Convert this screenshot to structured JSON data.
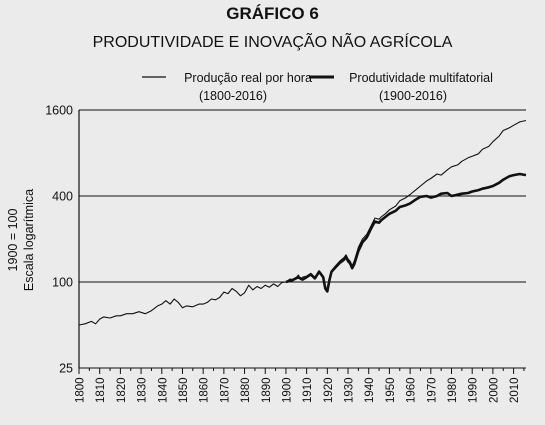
{
  "header": {
    "title": "GRÁFICO 6",
    "subtitle": "PRODUTIVIDADE E INOVAÇÃO NÃO AGRÍCOLA"
  },
  "chart_data": {
    "type": "line",
    "title": "GRÁFICO 6",
    "subtitle": "PRODUTIVIDADE E INOVAÇÃO NÃO AGRÍCOLA",
    "ylabel_lines": [
      "1900 = 100",
      "Escala logarítmica"
    ],
    "yscale": "log",
    "ylim": [
      25,
      1600
    ],
    "yticks": [
      25,
      100,
      400,
      1600
    ],
    "ytick_labels": [
      "25",
      "100",
      "400",
      "1600"
    ],
    "xlim": [
      1800,
      2016
    ],
    "xticks": [
      1800,
      1810,
      1820,
      1830,
      1840,
      1850,
      1860,
      1870,
      1880,
      1890,
      1900,
      1910,
      1920,
      1930,
      1940,
      1950,
      1960,
      1970,
      1980,
      1990,
      2000,
      2010
    ],
    "xtick_labels": [
      "1800",
      "1810",
      "1820",
      "1830",
      "1840",
      "1850",
      "1860",
      "1870",
      "1880",
      "1890",
      "1900",
      "1910",
      "1920",
      "1930",
      "1940",
      "1950",
      "1960",
      "1970",
      "1980",
      "1990",
      "2000",
      "2010"
    ],
    "grid": "horizontal",
    "legend_position": "top",
    "series": [
      {
        "name_lines": [
          "Produção real por hora",
          "(1800-2016)"
        ],
        "color": "#111111",
        "style": "thin",
        "x": [
          1800,
          1803,
          1806,
          1808,
          1810,
          1812,
          1815,
          1818,
          1820,
          1823,
          1826,
          1829,
          1832,
          1835,
          1838,
          1840,
          1842,
          1844,
          1846,
          1848,
          1850,
          1852,
          1855,
          1858,
          1860,
          1862,
          1864,
          1866,
          1868,
          1870,
          1872,
          1874,
          1876,
          1878,
          1880,
          1882,
          1884,
          1886,
          1888,
          1890,
          1892,
          1894,
          1896,
          1898,
          1900,
          1902,
          1904,
          1906,
          1907,
          1908,
          1910,
          1912,
          1914,
          1916,
          1918,
          1919,
          1920,
          1921,
          1922,
          1924,
          1926,
          1928,
          1929,
          1930,
          1931,
          1932,
          1933,
          1935,
          1937,
          1939,
          1941,
          1943,
          1945,
          1946,
          1948,
          1950,
          1953,
          1955,
          1958,
          1960,
          1963,
          1965,
          1968,
          1970,
          1973,
          1975,
          1978,
          1980,
          1983,
          1985,
          1988,
          1990,
          1993,
          1995,
          1998,
          2000,
          2003,
          2005,
          2008,
          2010,
          2013,
          2016
        ],
        "y": [
          50,
          51,
          53,
          51,
          55,
          57,
          56,
          58,
          58,
          60,
          60,
          62,
          60,
          63,
          68,
          70,
          74,
          70,
          76,
          72,
          66,
          68,
          67,
          70,
          70,
          72,
          76,
          75,
          78,
          85,
          83,
          90,
          86,
          80,
          84,
          95,
          88,
          93,
          90,
          95,
          92,
          97,
          93,
          99,
          100,
          105,
          103,
          112,
          104,
          108,
          110,
          115,
          108,
          120,
          110,
          92,
          88,
          105,
          120,
          130,
          140,
          148,
          155,
          145,
          140,
          130,
          140,
          175,
          200,
          215,
          245,
          280,
          275,
          285,
          300,
          320,
          340,
          370,
          390,
          410,
          445,
          470,
          510,
          530,
          570,
          560,
          610,
          640,
          660,
          700,
          740,
          760,
          790,
          850,
          890,
          960,
          1050,
          1150,
          1200,
          1250,
          1320,
          1350
        ]
      },
      {
        "name_lines": [
          "Produtividade multifatorial",
          "(1900-2016)"
        ],
        "color": "#111111",
        "style": "thick",
        "x": [
          1900,
          1903,
          1906,
          1908,
          1910,
          1912,
          1914,
          1916,
          1918,
          1919,
          1920,
          1921,
          1922,
          1924,
          1926,
          1928,
          1929,
          1930,
          1931,
          1932,
          1933,
          1935,
          1937,
          1939,
          1941,
          1943,
          1945,
          1946,
          1948,
          1950,
          1953,
          1955,
          1958,
          1960,
          1963,
          1965,
          1968,
          1970,
          1973,
          1975,
          1978,
          1980,
          1982,
          1985,
          1988,
          1990,
          1993,
          1995,
          1998,
          2000,
          2003,
          2005,
          2008,
          2010,
          2013,
          2016
        ],
        "y": [
          100,
          103,
          108,
          104,
          108,
          113,
          106,
          118,
          108,
          90,
          86,
          103,
          118,
          127,
          136,
          143,
          150,
          140,
          135,
          125,
          133,
          165,
          190,
          205,
          235,
          265,
          260,
          270,
          285,
          300,
          315,
          335,
          345,
          355,
          380,
          395,
          400,
          390,
          400,
          415,
          420,
          400,
          405,
          415,
          420,
          430,
          440,
          450,
          460,
          470,
          495,
          520,
          550,
          560,
          570,
          560
        ]
      }
    ]
  }
}
